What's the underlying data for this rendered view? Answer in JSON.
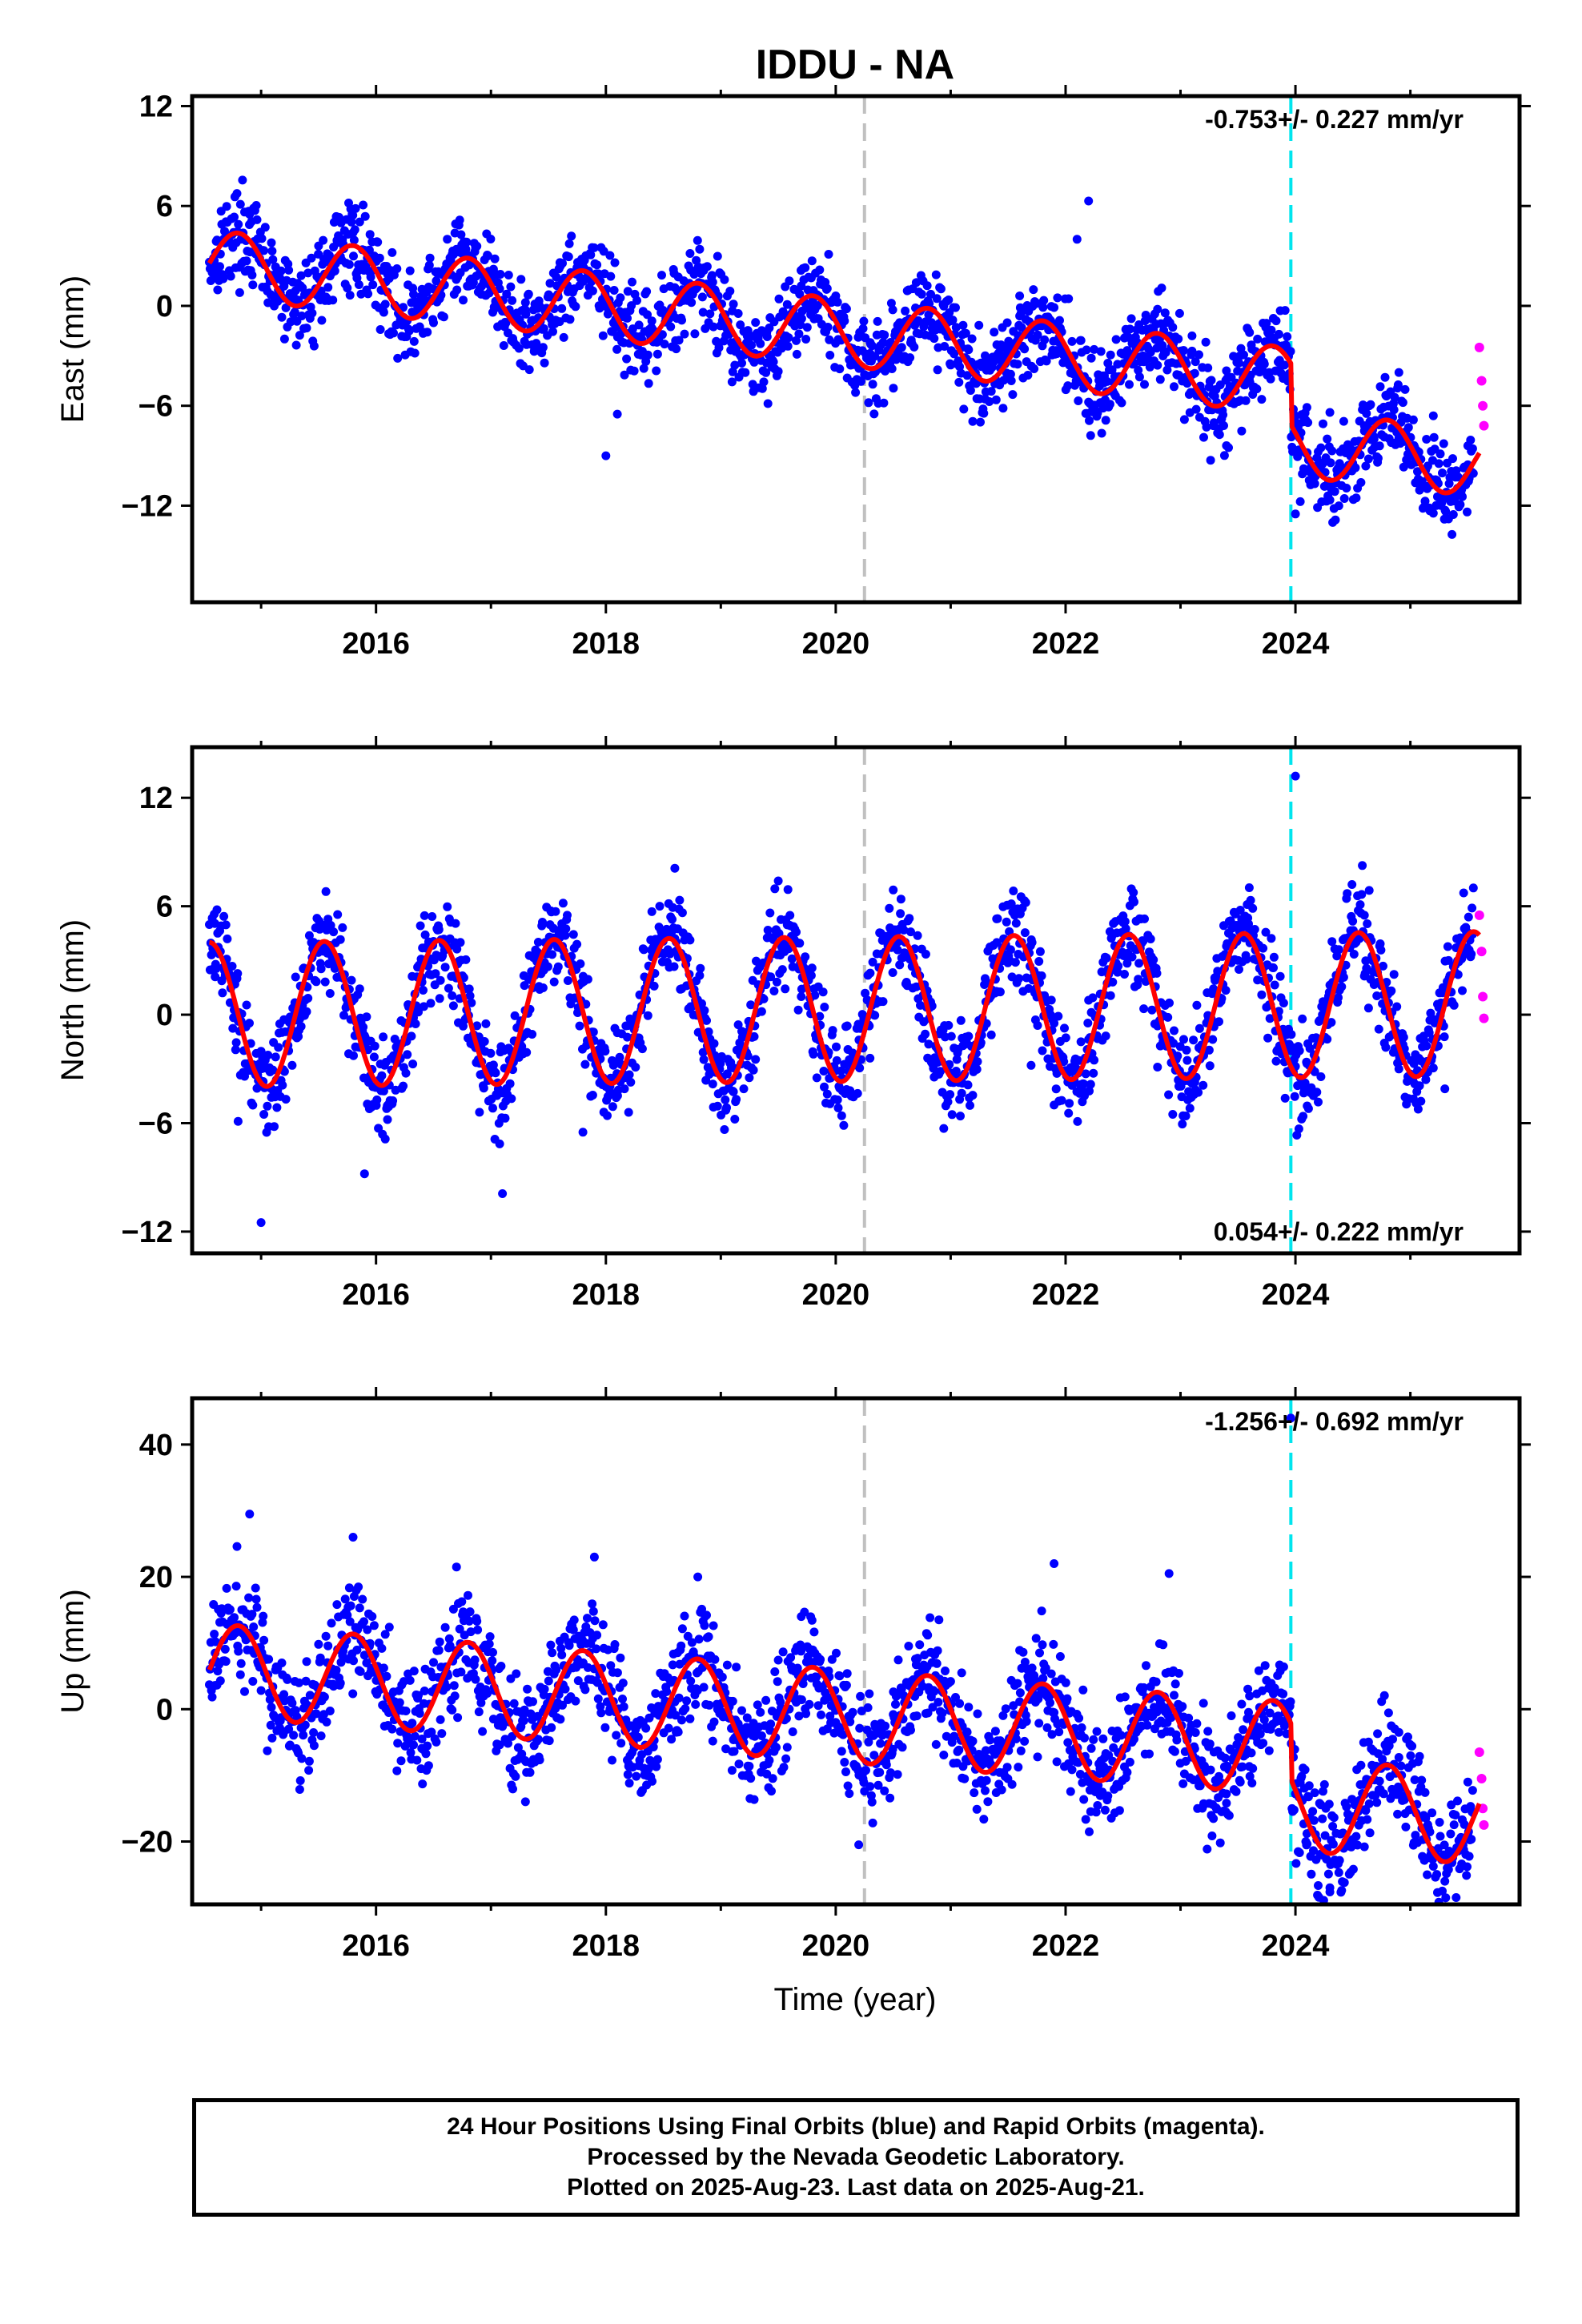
{
  "page": {
    "title": "IDDU - NA",
    "xlabel": "Time (year)",
    "caption": [
      "24 Hour Positions Using Final Orbits (blue) and Rapid Orbits (magenta).",
      "Processed by the Nevada Geodetic Laboratory.",
      "Plotted on 2025-Aug-23. Last data on 2025-Aug-21."
    ]
  },
  "colors": {
    "final_orbits": "#0000ff",
    "rapid_orbits": "#ff00ff",
    "model_fit": "#ff0000",
    "vline_gray": "#c0c0c0",
    "vline_cyan": "#00e5ee"
  },
  "chart_data": [
    {
      "type": "scatter",
      "component": "east",
      "ylabel": "East (mm)",
      "rate_label": "-0.753+/- 0.227 mm/yr",
      "rate_position": "top-right",
      "xlim": [
        2014.4,
        2025.95
      ],
      "ylim": [
        -17.8,
        12.6
      ],
      "xticks": [
        2016,
        2018,
        2020,
        2022,
        2024
      ],
      "yticks": [
        -12,
        -6,
        0,
        6,
        12
      ],
      "vlines": [
        {
          "x": 2020.25,
          "color": "gray"
        },
        {
          "x": 2023.96,
          "color": "cyan"
        }
      ],
      "fit": {
        "intercept": 2.6,
        "slope": -0.753,
        "amp": 2.0,
        "phase": 2014.55,
        "steps": [
          {
            "x": 2023.96,
            "dy": -3.7
          }
        ]
      },
      "series": [
        {
          "x": [
            2014.6,
            2014.9,
            2015.2,
            2015.5,
            2015.8,
            2016.1,
            2016.4,
            2016.7,
            2017.0,
            2017.3,
            2017.6,
            2017.9,
            2018.0,
            2018.1,
            2018.4,
            2018.8,
            2019.1,
            2019.4,
            2019.7,
            2020.0,
            2020.3,
            2020.7,
            2021.0,
            2021.3,
            2021.6,
            2021.9,
            2022.1,
            2022.2,
            2022.5,
            2022.8,
            2023.1,
            2023.4,
            2023.6,
            2024.0,
            2024.1,
            2024.3,
            2024.6,
            2024.9,
            2025.2,
            2025.5
          ],
          "y": [
            2.1,
            5.5,
            1.2,
            3.6,
            4.4,
            1.9,
            1.0,
            3.4,
            1.3,
            0.2,
            2.6,
            1.8,
            -9.0,
            -6.5,
            -0.9,
            2.1,
            -0.3,
            -1.6,
            1.2,
            0.6,
            -2.2,
            1.4,
            -0.9,
            -3.0,
            0.6,
            -1.4,
            4.0,
            6.3,
            -2.9,
            -0.2,
            -1.8,
            -3.9,
            -1.6,
            -12.5,
            -6.1,
            -6.4,
            -7.2,
            -4.0,
            -6.6,
            -8.4
          ]
        },
        {
          "name": "rapid",
          "x": [
            2025.6,
            2025.62,
            2025.63,
            2025.64
          ],
          "y": [
            -2.5,
            -4.5,
            -6.0,
            -7.2
          ]
        }
      ]
    },
    {
      "type": "scatter",
      "component": "north",
      "ylabel": "North (mm)",
      "rate_label": "0.054+/- 0.222 mm/yr",
      "rate_position": "bottom-right",
      "xlim": [
        2014.4,
        2025.95
      ],
      "ylim": [
        -13.2,
        14.8
      ],
      "xticks": [
        2016,
        2018,
        2020,
        2022,
        2024
      ],
      "yticks": [
        -12,
        -6,
        0,
        6,
        12
      ],
      "vlines": [
        {
          "x": 2020.25,
          "color": "gray"
        },
        {
          "x": 2023.96,
          "color": "cyan"
        }
      ],
      "fit": {
        "intercept": 0.0,
        "slope": 0.054,
        "amp": 4.0,
        "phase": 2014.3,
        "steps": []
      },
      "series": [
        {
          "x": [
            2014.6,
            2014.8,
            2015.0,
            2015.3,
            2015.5,
            2015.9,
            2016.1,
            2016.4,
            2016.6,
            2016.9,
            2017.1,
            2017.4,
            2017.6,
            2017.8,
            2018.1,
            2018.4,
            2018.6,
            2018.9,
            2019.2,
            2019.5,
            2019.7,
            2019.9,
            2020.3,
            2020.5,
            2020.8,
            2021.1,
            2021.4,
            2021.7,
            2021.9,
            2022.2,
            2022.5,
            2022.8,
            2023.1,
            2023.3,
            2023.6,
            2024.0,
            2024.1,
            2024.4,
            2024.6,
            2024.9,
            2025.3,
            2025.5
          ],
          "y": [
            2.1,
            -5.9,
            -11.5,
            -1.2,
            3.9,
            -8.8,
            -5.8,
            1.8,
            4.0,
            -5.4,
            -9.9,
            2.5,
            3.7,
            -6.5,
            -1.0,
            5.7,
            8.1,
            -3.3,
            -1.9,
            7.4,
            1.0,
            -4.0,
            2.3,
            6.9,
            -2.4,
            -1.3,
            5.3,
            -2.8,
            -5.0,
            0.8,
            5.1,
            -2.9,
            -3.4,
            1.9,
            4.7,
            13.2,
            -2.7,
            2.3,
            5.5,
            -1.2,
            -4.1,
            3.4
          ]
        },
        {
          "name": "rapid",
          "x": [
            2025.6,
            2025.62,
            2025.63,
            2025.64
          ],
          "y": [
            5.5,
            3.5,
            1.0,
            -0.2
          ]
        }
      ]
    },
    {
      "type": "scatter",
      "component": "up",
      "ylabel": "Up (mm)",
      "rate_label": "-1.256+/- 0.692 mm/yr",
      "rate_position": "top-right",
      "xlim": [
        2014.4,
        2025.95
      ],
      "ylim": [
        -29.5,
        47.0
      ],
      "xticks": [
        2016,
        2018,
        2020,
        2022,
        2024
      ],
      "yticks": [
        -20,
        0,
        20,
        40
      ],
      "vlines": [
        {
          "x": 2020.25,
          "color": "gray"
        },
        {
          "x": 2023.96,
          "color": "cyan"
        }
      ],
      "fit": {
        "intercept": 6.0,
        "slope": -1.256,
        "amp": 7.0,
        "phase": 2014.55,
        "steps": [
          {
            "x": 2023.96,
            "dy": -8.5
          }
        ]
      },
      "series": [
        {
          "x": [
            2014.6,
            2014.9,
            2015.2,
            2015.5,
            2015.8,
            2016.1,
            2016.4,
            2016.7,
            2017.0,
            2017.3,
            2017.6,
            2017.9,
            2018.2,
            2018.4,
            2018.8,
            2019.1,
            2019.4,
            2019.7,
            2020.0,
            2020.2,
            2020.5,
            2020.8,
            2021.1,
            2021.3,
            2021.6,
            2021.9,
            2022.1,
            2022.3,
            2022.7,
            2022.9,
            2023.2,
            2023.4,
            2023.6,
            2023.96,
            2024.1,
            2024.3,
            2024.6,
            2024.9,
            2025.1,
            2025.3,
            2025.5
          ],
          "y": [
            8.5,
            29.5,
            -3.4,
            9.8,
            26.0,
            1.9,
            -4.5,
            21.5,
            4.7,
            -14.0,
            10.3,
            23.0,
            -8.3,
            -5.5,
            20.0,
            -6.4,
            -9.8,
            14.0,
            -2.0,
            -20.5,
            -0.8,
            11.2,
            -10.4,
            -7.5,
            8.9,
            22.0,
            -5.8,
            -9.0,
            6.6,
            20.5,
            0.9,
            -14.2,
            2.0,
            44.0,
            -18.8,
            -27.0,
            -12.9,
            -3.5,
            -18.0,
            -26.0,
            -11.0
          ]
        },
        {
          "name": "rapid",
          "x": [
            2025.6,
            2025.62,
            2025.63,
            2025.64
          ],
          "y": [
            -6.5,
            -10.5,
            -15.0,
            -17.5
          ]
        }
      ]
    }
  ]
}
